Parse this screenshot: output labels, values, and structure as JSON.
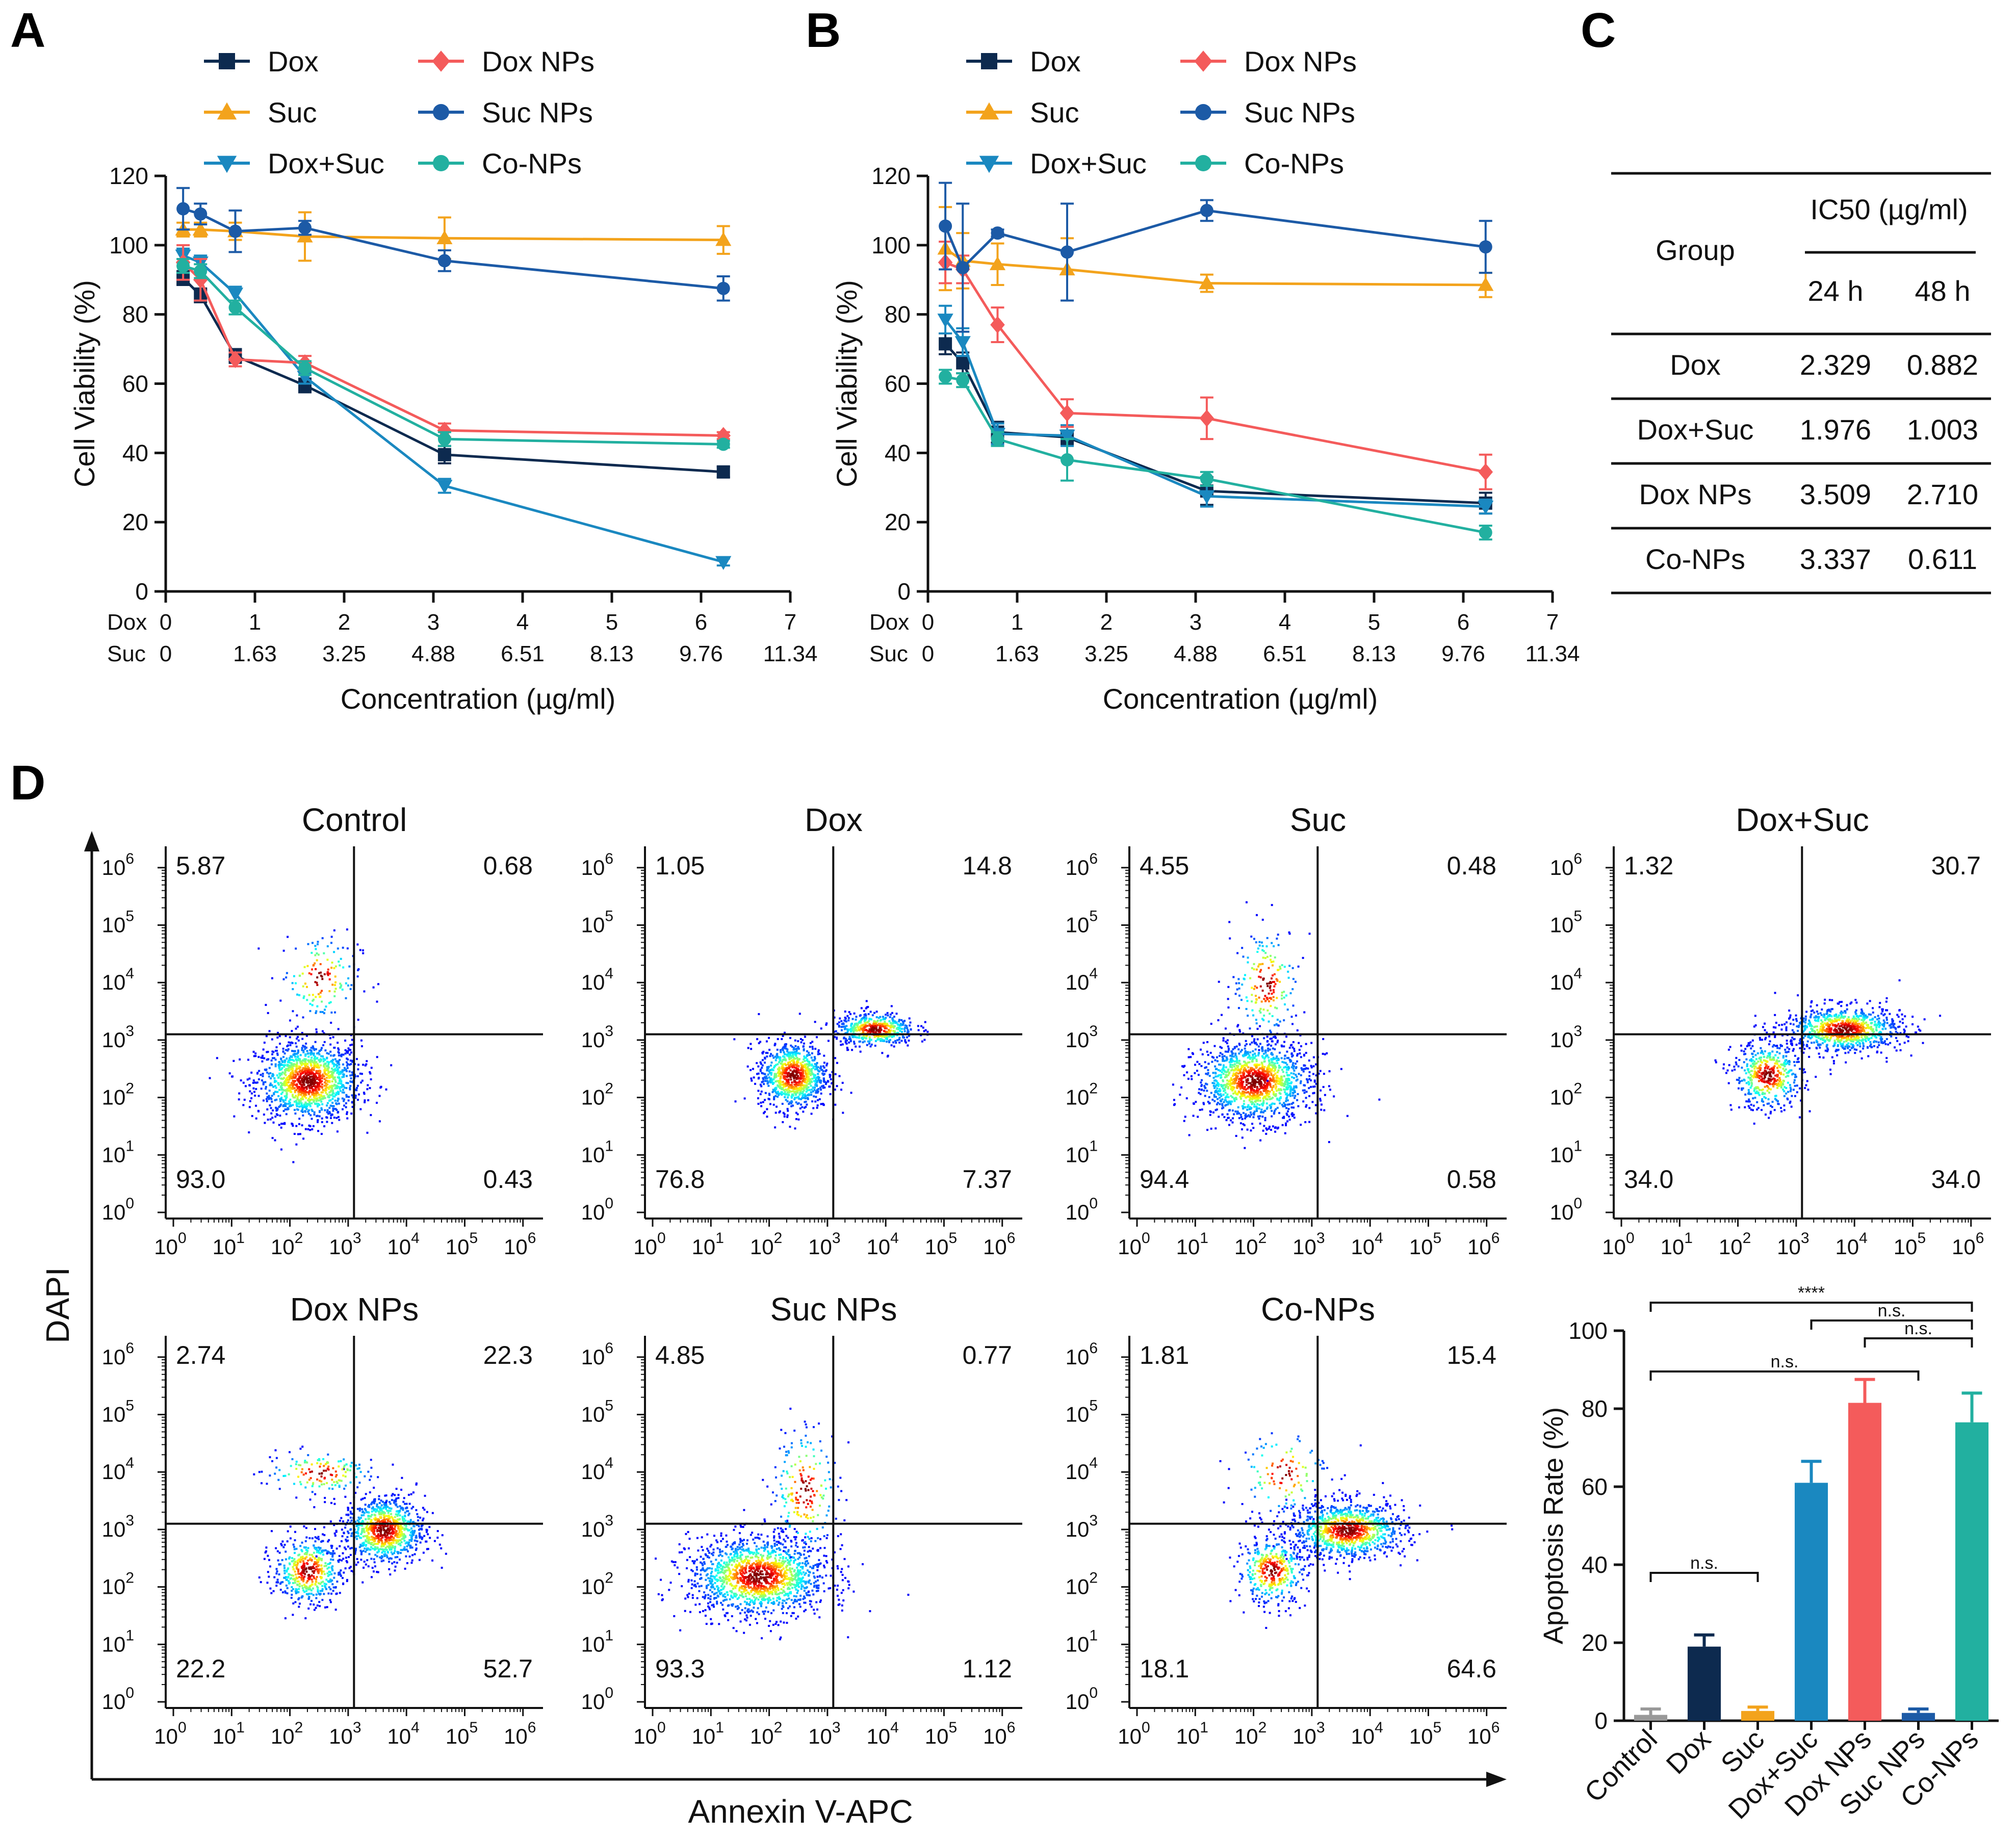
{
  "figure": {
    "panel_letters": [
      "A",
      "B",
      "C",
      "D"
    ]
  },
  "chart_data": [
    {
      "id": "A",
      "type": "line",
      "ylabel": "Cell Viability (%)",
      "xlabel": "Concentration (µg/ml)",
      "ylim": [
        0,
        120
      ],
      "xlim": [
        0,
        7
      ],
      "yticks": [
        "0",
        "20",
        "40",
        "60",
        "80",
        "100",
        "120"
      ],
      "xtick_rows": [
        {
          "label": "Dox",
          "ticks": [
            "0",
            "1",
            "2",
            "3",
            "4",
            "5",
            "6",
            "7"
          ]
        },
        {
          "label": "Suc",
          "ticks": [
            "0",
            "1.63",
            "3.25",
            "4.88",
            "6.51",
            "8.13",
            "9.76",
            "11.34"
          ]
        }
      ],
      "x": [
        0.195,
        0.39,
        0.78,
        1.56,
        3.125,
        6.25
      ],
      "legend": [
        "Dox",
        "Dox NPs",
        "Suc",
        "Suc NPs",
        "Dox+Suc",
        "Co-NPs"
      ],
      "series": [
        {
          "name": "Dox",
          "color": "#0d2a4f",
          "marker": "square",
          "values": [
            90.5,
            85.5,
            68,
            59.5,
            39.5,
            34.5
          ],
          "errors": [
            2,
            2,
            2,
            2,
            2.5,
            1.5
          ]
        },
        {
          "name": "Suc",
          "color": "#f3a31c",
          "marker": "triangle-up",
          "values": [
            104.5,
            104.5,
            104,
            102.5,
            102,
            101.5
          ],
          "errors": [
            2,
            2,
            2.5,
            7,
            6,
            4
          ]
        },
        {
          "name": "Dox+Suc",
          "color": "#1a88c0",
          "marker": "triangle-down",
          "values": [
            97,
            95,
            86,
            62,
            30.5,
            8.5
          ],
          "errors": [
            2,
            2,
            2,
            2,
            2,
            1
          ]
        },
        {
          "name": "Dox NPs",
          "color": "#f45b5b",
          "marker": "diamond",
          "values": [
            95,
            90,
            67,
            66,
            46.5,
            45
          ],
          "errors": [
            5,
            6,
            2,
            2,
            2,
            1
          ]
        },
        {
          "name": "Suc NPs",
          "color": "#1c5aa6",
          "marker": "circle",
          "values": [
            110.5,
            109,
            104,
            105,
            95.5,
            87.5
          ],
          "errors": [
            6,
            3,
            6,
            2,
            3,
            3.5
          ]
        },
        {
          "name": "Co-NPs",
          "color": "#22b0a0",
          "marker": "circle",
          "values": [
            94,
            92.5,
            82,
            64.5,
            44,
            42.5
          ],
          "errors": [
            2,
            2,
            2,
            2,
            2,
            1
          ]
        }
      ]
    },
    {
      "id": "B",
      "type": "line",
      "ylabel": "Cell Viability (%)",
      "xlabel": "Concentration (µg/ml)",
      "ylim": [
        0,
        120
      ],
      "xlim": [
        0,
        7
      ],
      "yticks": [
        "0",
        "20",
        "40",
        "60",
        "80",
        "100",
        "120"
      ],
      "xtick_rows": [
        {
          "label": "Dox",
          "ticks": [
            "0",
            "1",
            "2",
            "3",
            "4",
            "5",
            "6",
            "7"
          ]
        },
        {
          "label": "Suc",
          "ticks": [
            "0",
            "1.63",
            "3.25",
            "4.88",
            "6.51",
            "8.13",
            "9.76",
            "11.34"
          ]
        }
      ],
      "x": [
        0.195,
        0.39,
        0.78,
        1.56,
        3.125,
        6.25
      ],
      "legend": [
        "Dox",
        "Dox NPs",
        "Suc",
        "Suc NPs",
        "Dox+Suc",
        "Co-NPs"
      ],
      "series": [
        {
          "name": "Dox",
          "color": "#0d2a4f",
          "marker": "square",
          "values": [
            71.5,
            66,
            46,
            44.5,
            29,
            25.5
          ],
          "errors": [
            3,
            3,
            3,
            2,
            4,
            3
          ]
        },
        {
          "name": "Suc",
          "color": "#f3a31c",
          "marker": "triangle-up",
          "values": [
            99,
            95.5,
            94.5,
            93,
            89,
            88.5
          ],
          "errors": [
            12,
            8,
            6,
            9,
            2.5,
            3.5
          ]
        },
        {
          "name": "Dox+Suc",
          "color": "#1a88c0",
          "marker": "triangle-down",
          "values": [
            78.5,
            72,
            45.5,
            45,
            27.5,
            24.5
          ],
          "errors": [
            4,
            4,
            3,
            3,
            3,
            2
          ]
        },
        {
          "name": "Dox NPs",
          "color": "#f45b5b",
          "marker": "diamond",
          "values": [
            95,
            93,
            77,
            51.5,
            50,
            34.5
          ],
          "errors": [
            6,
            4,
            5,
            4,
            6,
            5
          ]
        },
        {
          "name": "Suc NPs",
          "color": "#1c5aa6",
          "marker": "circle",
          "values": [
            105.5,
            93.5,
            103.5,
            98,
            110,
            99.5
          ],
          "errors": [
            12.5,
            18.5,
            1,
            14,
            3,
            7.5
          ]
        },
        {
          "name": "Co-NPs",
          "color": "#22b0a0",
          "marker": "circle",
          "values": [
            62,
            61,
            44,
            38,
            32.5,
            17
          ],
          "errors": [
            2,
            2,
            2,
            6,
            2,
            2
          ]
        }
      ]
    },
    {
      "id": "C",
      "type": "table",
      "header": {
        "group": "Group",
        "ic50": "IC50 (µg/ml)",
        "col1": "24 h",
        "col2": "48 h"
      },
      "rows": [
        {
          "group": "Dox",
          "v24": "2.329",
          "v48": "0.882"
        },
        {
          "group": "Dox+Suc",
          "v24": "1.976",
          "v48": "1.003"
        },
        {
          "group": "Dox NPs",
          "v24": "3.509",
          "v48": "2.710"
        },
        {
          "group": "Co-NPs",
          "v24": "3.337",
          "v48": "0.611"
        }
      ]
    },
    {
      "id": "D-flow",
      "type": "scatter",
      "x_axis_label": "Annexin V-APC",
      "y_axis_label": "DAPI",
      "log_ticks": [
        "0",
        "1",
        "2",
        "3",
        "4",
        "5",
        "6"
      ],
      "plots": [
        {
          "title": "Control",
          "ul": "5.87",
          "ur": "0.68",
          "ll": "93.0",
          "lr": "0.43",
          "clusters": [
            {
              "cx": 2.3,
              "cy": 2.3,
              "sx": 0.45,
              "sy": 0.35,
              "n": 1400
            },
            {
              "cx": 2.5,
              "cy": 4.1,
              "sx": 0.35,
              "sy": 0.4,
              "n": 150
            }
          ]
        },
        {
          "title": "Dox",
          "ul": "1.05",
          "ur": "14.8",
          "ll": "76.8",
          "lr": "7.37",
          "clusters": [
            {
              "cx": 2.4,
              "cy": 2.4,
              "sx": 0.3,
              "sy": 0.3,
              "n": 900
            },
            {
              "cx": 3.8,
              "cy": 3.2,
              "sx": 0.35,
              "sy": 0.15,
              "n": 500
            }
          ]
        },
        {
          "title": "Suc",
          "ul": "4.55",
          "ur": "0.48",
          "ll": "94.4",
          "lr": "0.58",
          "clusters": [
            {
              "cx": 2.0,
              "cy": 2.3,
              "sx": 0.5,
              "sy": 0.35,
              "n": 1400
            },
            {
              "cx": 2.2,
              "cy": 4.0,
              "sx": 0.3,
              "sy": 0.5,
              "n": 200
            }
          ]
        },
        {
          "title": "Dox+Suc",
          "ul": "1.32",
          "ur": "30.7",
          "ll": "34.0",
          "lr": "34.0",
          "clusters": [
            {
              "cx": 2.5,
              "cy": 2.4,
              "sx": 0.3,
              "sy": 0.3,
              "n": 500
            },
            {
              "cx": 3.8,
              "cy": 3.2,
              "sx": 0.5,
              "sy": 0.2,
              "n": 900
            }
          ]
        },
        {
          "title": "Dox NPs",
          "ul": "2.74",
          "ur": "22.3",
          "ll": "22.2",
          "lr": "52.7",
          "clusters": [
            {
              "cx": 2.3,
              "cy": 2.3,
              "sx": 0.3,
              "sy": 0.3,
              "n": 500
            },
            {
              "cx": 3.6,
              "cy": 3.0,
              "sx": 0.35,
              "sy": 0.3,
              "n": 900
            },
            {
              "cx": 2.5,
              "cy": 4.0,
              "sx": 0.5,
              "sy": 0.2,
              "n": 150
            }
          ]
        },
        {
          "title": "Suc NPs",
          "ul": "4.85",
          "ur": "0.77",
          "ll": "93.3",
          "lr": "1.12",
          "clusters": [
            {
              "cx": 1.8,
              "cy": 2.2,
              "sx": 0.6,
              "sy": 0.35,
              "n": 1500
            },
            {
              "cx": 2.6,
              "cy": 3.7,
              "sx": 0.3,
              "sy": 0.6,
              "n": 200
            }
          ]
        },
        {
          "title": "Co-NPs",
          "ul": "1.81",
          "ur": "15.4",
          "ll": "18.1",
          "lr": "64.6",
          "clusters": [
            {
              "cx": 2.3,
              "cy": 2.3,
              "sx": 0.3,
              "sy": 0.3,
              "n": 400
            },
            {
              "cx": 3.6,
              "cy": 3.0,
              "sx": 0.5,
              "sy": 0.25,
              "n": 1000
            },
            {
              "cx": 2.5,
              "cy": 4.0,
              "sx": 0.4,
              "sy": 0.4,
              "n": 120
            }
          ]
        }
      ]
    },
    {
      "id": "D-bar",
      "type": "bar",
      "ylabel": "Apoptosis Rate (%)",
      "ylim": [
        0,
        100
      ],
      "yticks": [
        "0",
        "20",
        "40",
        "60",
        "80",
        "100"
      ],
      "categories": [
        "Control",
        "Dox",
        "Suc",
        "Dox+Suc",
        "Dox NPs",
        "Suc NPs",
        "Co-NPs"
      ],
      "values": [
        1.5,
        19,
        2.5,
        61,
        81.5,
        2,
        76.5
      ],
      "errors": [
        1.5,
        3,
        1,
        5.5,
        6,
        1,
        7.5
      ],
      "colors": [
        "#999999",
        "#0d2a4f",
        "#f3a31c",
        "#1a88c0",
        "#f45b5b",
        "#1c5aa6",
        "#22b0a0"
      ],
      "significance": [
        {
          "from": 0,
          "to": 6,
          "label": "****",
          "level": 0
        },
        {
          "from": 3,
          "to": 6,
          "label": "n.s.",
          "level": 1
        },
        {
          "from": 4,
          "to": 6,
          "label": "n.s.",
          "level": 2
        },
        {
          "from": 0,
          "to": 5,
          "label": "n.s.",
          "level": 3
        },
        {
          "from": 0,
          "to": 2,
          "label": "n.s.",
          "level": 4
        }
      ]
    }
  ]
}
